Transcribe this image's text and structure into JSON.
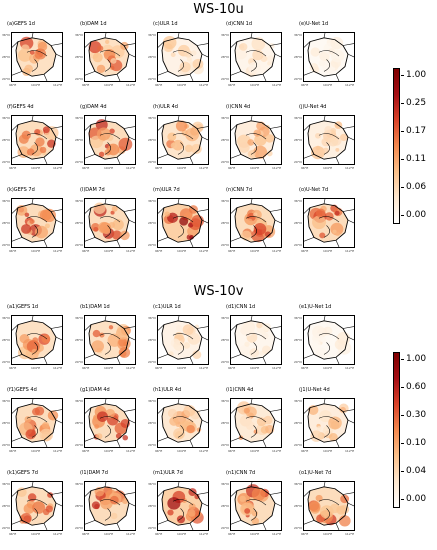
{
  "figure": {
    "sections": [
      {
        "title": "WS-10u",
        "colorbar_ticks": [
          "1.00",
          "0.25",
          "0.17",
          "0.11",
          "0.06",
          "0.00"
        ],
        "colorbar_colors": [
          "#ffffff",
          "#fde7cf",
          "#fbc08a",
          "#f3894f",
          "#d9432a",
          "#a50f15",
          "#7f0000"
        ],
        "panels": [
          {
            "label": "(a)GEFS 1d",
            "intensity": 0.55
          },
          {
            "label": "(b)DAM 1d",
            "intensity": 0.55
          },
          {
            "label": "(c)ULR 1d",
            "intensity": 0.25
          },
          {
            "label": "(d)CNN 1d",
            "intensity": 0.2
          },
          {
            "label": "(e)U-Net 1d",
            "intensity": 0.12
          },
          {
            "label": "(f)GEFS 4d",
            "intensity": 0.6
          },
          {
            "label": "(g)DAM 4d",
            "intensity": 0.6
          },
          {
            "label": "(h)ULR 4d",
            "intensity": 0.5
          },
          {
            "label": "(i)CNN 4d",
            "intensity": 0.35
          },
          {
            "label": "(j)U-Net 4d",
            "intensity": 0.3
          },
          {
            "label": "(k)GEFS 7d",
            "intensity": 0.6
          },
          {
            "label": "(l)DAM 7d",
            "intensity": 0.6
          },
          {
            "label": "(m)ULR 7d",
            "intensity": 0.75
          },
          {
            "label": "(n)CNN 7d",
            "intensity": 0.6
          },
          {
            "label": "(o)U-Net 7d",
            "intensity": 0.6
          }
        ]
      },
      {
        "title": "WS-10v",
        "colorbar_ticks": [
          "1.00",
          "0.60",
          "0.30",
          "0.10",
          "0.04",
          "0.00"
        ],
        "colorbar_colors": [
          "#ffffff",
          "#fde7cf",
          "#fbc08a",
          "#f3894f",
          "#d9432a",
          "#a50f15",
          "#7f0000"
        ],
        "panels": [
          {
            "label": "(a1)GEFS 1d",
            "intensity": 0.55
          },
          {
            "label": "(b1)DAM 1d",
            "intensity": 0.55
          },
          {
            "label": "(c1)ULR 1d",
            "intensity": 0.25
          },
          {
            "label": "(d1)CNN 1d",
            "intensity": 0.18
          },
          {
            "label": "(e1)U-Net 1d",
            "intensity": 0.12
          },
          {
            "label": "(f1)GEFS 4d",
            "intensity": 0.6
          },
          {
            "label": "(g1)DAM 4d",
            "intensity": 0.6
          },
          {
            "label": "(h1)ULR 4d",
            "intensity": 0.45
          },
          {
            "label": "(i1)CNN 4d",
            "intensity": 0.4
          },
          {
            "label": "(j1)U-Net 4d",
            "intensity": 0.35
          },
          {
            "label": "(k1)GEFS 7d",
            "intensity": 0.6
          },
          {
            "label": "(l1)DAM 7d",
            "intensity": 0.6
          },
          {
            "label": "(m1)ULR 7d",
            "intensity": 0.75
          },
          {
            "label": "(n1)CNN 7d",
            "intensity": 0.6
          },
          {
            "label": "(o1)U-Net 7d",
            "intensity": 0.6
          }
        ]
      }
    ],
    "axis_ticks": {
      "y": [
        "36°N",
        "28°N",
        "20°N"
      ],
      "x": [
        "96°E",
        "104°E",
        "112°E"
      ]
    }
  }
}
